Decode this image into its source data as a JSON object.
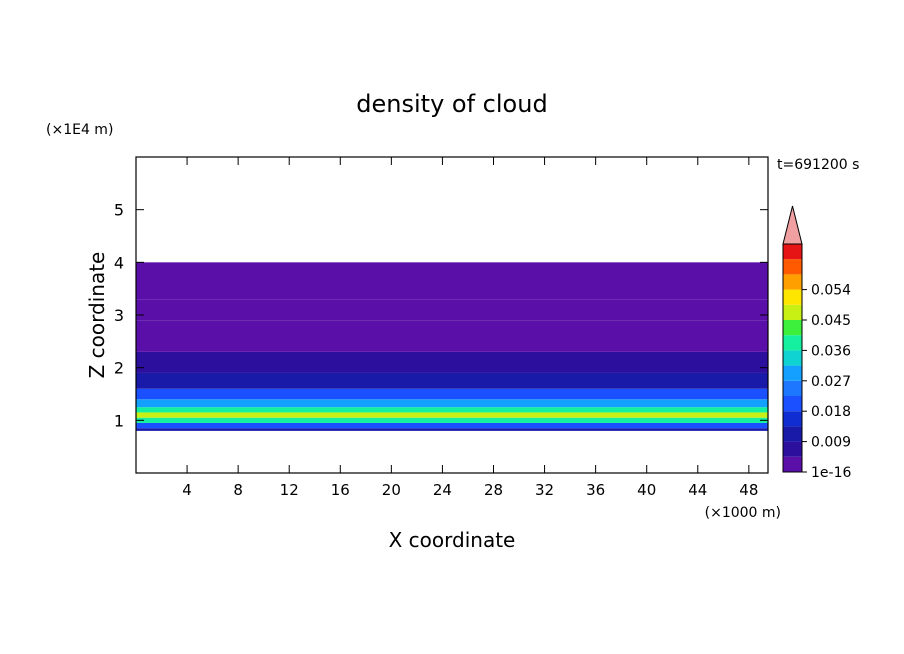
{
  "chart_data": {
    "type": "heatmap",
    "title": "density of cloud",
    "time_label": "t=691200 s",
    "xlabel": "X coordinate",
    "ylabel": "Z coordinate",
    "x_unit": "(×1000 m)",
    "y_unit": "(×1E4 m)",
    "xlim": [
      0,
      49.5
    ],
    "ylim": [
      0,
      6
    ],
    "x_ticks": [
      4,
      8,
      12,
      16,
      20,
      24,
      28,
      32,
      36,
      40,
      44,
      48
    ],
    "y_ticks": [
      1,
      2,
      3,
      4,
      5
    ],
    "colorbar": {
      "tick_labels": [
        "1e-16",
        "0.009",
        "0.018",
        "0.027",
        "0.036",
        "0.045",
        "0.054"
      ],
      "levels": 14,
      "extend": "max",
      "colors": [
        "#5a0fa8",
        "#2d0f9e",
        "#1a1aa8",
        "#0f2dd0",
        "#1a50ff",
        "#1e78ff",
        "#14a0ff",
        "#0fd2d2",
        "#14f0a0",
        "#3cf03c",
        "#c8f014",
        "#ffe600",
        "#ffa000",
        "#ff5a00",
        "#e61414"
      ],
      "over_color": "#f0a0a0"
    },
    "layers": [
      {
        "z_bottom": 0.8,
        "z_top": 0.85,
        "value": 0.009
      },
      {
        "z_bottom": 0.85,
        "z_top": 0.95,
        "value": 0.018
      },
      {
        "z_bottom": 0.95,
        "z_top": 1.05,
        "value": 0.036
      },
      {
        "z_bottom": 1.05,
        "z_top": 1.15,
        "value": 0.045
      },
      {
        "z_bottom": 1.15,
        "z_top": 1.25,
        "value": 0.036
      },
      {
        "z_bottom": 1.25,
        "z_top": 1.4,
        "value": 0.027
      },
      {
        "z_bottom": 1.4,
        "z_top": 1.6,
        "value": 0.018
      },
      {
        "z_bottom": 1.6,
        "z_top": 1.9,
        "value": 0.012
      },
      {
        "z_bottom": 1.9,
        "z_top": 2.3,
        "value": 0.006
      },
      {
        "z_bottom": 2.3,
        "z_top": 2.9,
        "value": 0.003
      },
      {
        "z_bottom": 2.9,
        "z_top": 3.3,
        "value": 0.0015
      },
      {
        "z_bottom": 3.3,
        "z_top": 4.0,
        "value": 1e-16
      }
    ]
  }
}
